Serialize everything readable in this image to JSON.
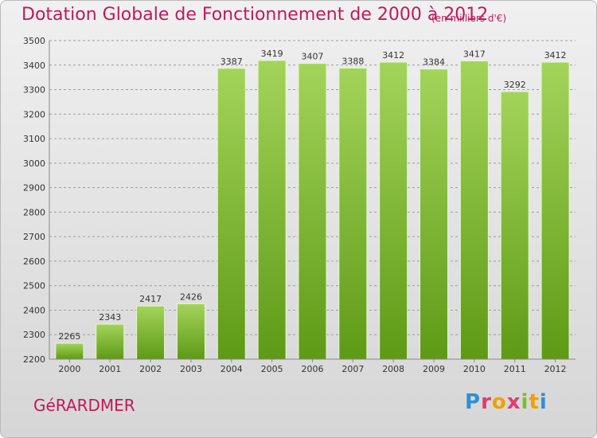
{
  "header": {
    "title": "Dotation Globale de Fonctionnement de 2000 à 2012",
    "unit_note": "(en milliers d'€)"
  },
  "footer": {
    "commune": "GéRARDMER",
    "logo_text": "Proxiti"
  },
  "colors": {
    "title": "#c2185b",
    "bar_light": "#a3d45a",
    "bar_dark": "#5e9a16",
    "grid": "#9c9c9c"
  },
  "chart_data": {
    "type": "bar",
    "title": "Dotation Globale de Fonctionnement de 2000 à 2012",
    "subtitle": "(en milliers d'€)",
    "categories": [
      "2000",
      "2001",
      "2002",
      "2003",
      "2004",
      "2005",
      "2006",
      "2007",
      "2008",
      "2009",
      "2010",
      "2011",
      "2012"
    ],
    "values": [
      2265,
      2343,
      2417,
      2426,
      3387,
      3419,
      3407,
      3388,
      3412,
      3384,
      3417,
      3292,
      3412
    ],
    "ylim": [
      2200,
      3500
    ],
    "yticks": [
      2200,
      2300,
      2400,
      2500,
      2600,
      2700,
      2800,
      2900,
      3000,
      3100,
      3200,
      3300,
      3400,
      3500
    ],
    "grid": true,
    "data_labels": true,
    "xlabel": "",
    "ylabel": ""
  }
}
